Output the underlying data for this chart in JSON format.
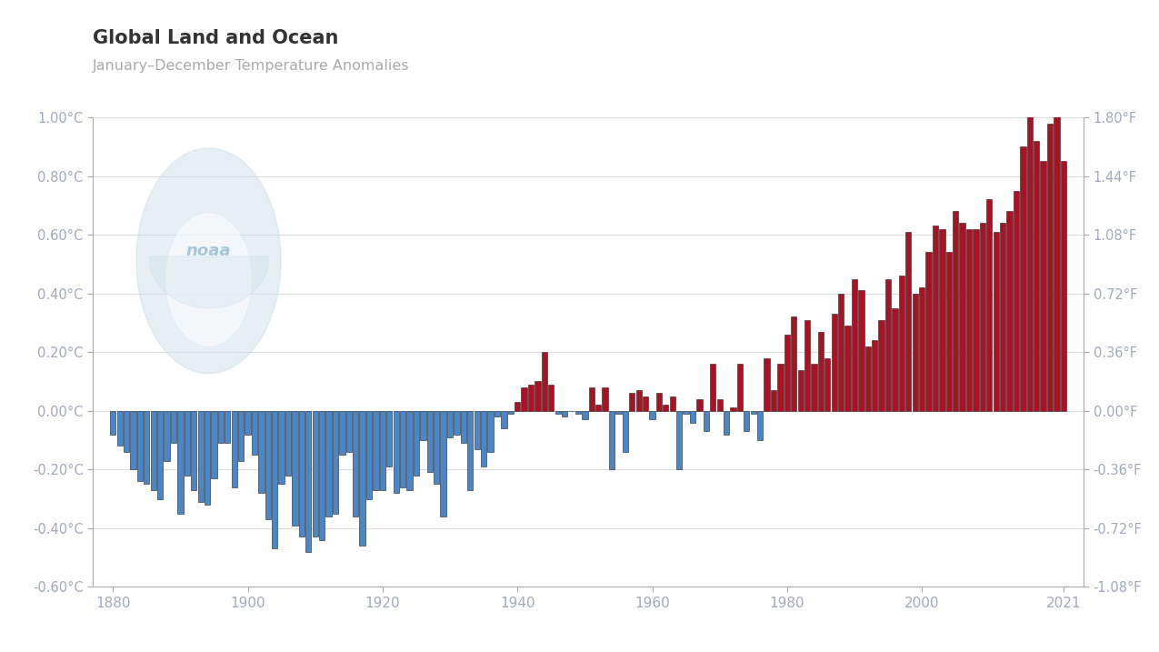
{
  "title": "Global Land and Ocean",
  "subtitle": "January–December Temperature Anomalies",
  "background_color": "#ffffff",
  "bar_color_positive": "#aa1122",
  "bar_color_negative": "#4a86c8",
  "ylim_celsius": [
    -0.6,
    1.0
  ],
  "yticks_celsius": [
    -0.6,
    -0.4,
    -0.2,
    0.0,
    0.2,
    0.4,
    0.6,
    0.8,
    1.0
  ],
  "ytick_labels_celsius": [
    "-0.60°C",
    "-0.40°C",
    "-0.20°C",
    "0.00°C",
    "0.20°C",
    "0.40°C",
    "0.60°C",
    "0.80°C",
    "1.00°C"
  ],
  "ytick_labels_fahrenheit": [
    "-1.08°F",
    "-0.72°F",
    "-0.36°F",
    "0.00°F",
    "0.36°F",
    "0.72°F",
    "1.08°F",
    "1.44°F",
    "1.80°F"
  ],
  "tick_label_color": "#a0aabb",
  "title_color": "#333333",
  "subtitle_color": "#aaaaaa",
  "spine_color": "#aaaaaa",
  "grid_color": "#dddddd",
  "xticks": [
    1880,
    1900,
    1920,
    1940,
    1960,
    1980,
    2000,
    2021
  ],
  "xlim": [
    1877,
    2024
  ],
  "years": [
    1880,
    1881,
    1882,
    1883,
    1884,
    1885,
    1886,
    1887,
    1888,
    1889,
    1890,
    1891,
    1892,
    1893,
    1894,
    1895,
    1896,
    1897,
    1898,
    1899,
    1900,
    1901,
    1902,
    1903,
    1904,
    1905,
    1906,
    1907,
    1908,
    1909,
    1910,
    1911,
    1912,
    1913,
    1914,
    1915,
    1916,
    1917,
    1918,
    1919,
    1920,
    1921,
    1922,
    1923,
    1924,
    1925,
    1926,
    1927,
    1928,
    1929,
    1930,
    1931,
    1932,
    1933,
    1934,
    1935,
    1936,
    1937,
    1938,
    1939,
    1940,
    1941,
    1942,
    1943,
    1944,
    1945,
    1946,
    1947,
    1948,
    1949,
    1950,
    1951,
    1952,
    1953,
    1954,
    1955,
    1956,
    1957,
    1958,
    1959,
    1960,
    1961,
    1962,
    1963,
    1964,
    1965,
    1966,
    1967,
    1968,
    1969,
    1970,
    1971,
    1972,
    1973,
    1974,
    1975,
    1976,
    1977,
    1978,
    1979,
    1980,
    1981,
    1982,
    1983,
    1984,
    1985,
    1986,
    1987,
    1988,
    1989,
    1990,
    1991,
    1992,
    1993,
    1994,
    1995,
    1996,
    1997,
    1998,
    1999,
    2000,
    2001,
    2002,
    2003,
    2004,
    2005,
    2006,
    2007,
    2008,
    2009,
    2010,
    2011,
    2012,
    2013,
    2014,
    2015,
    2016,
    2017,
    2018,
    2019,
    2020,
    2021
  ],
  "anomalies": [
    -0.08,
    -0.12,
    -0.14,
    -0.2,
    -0.24,
    -0.25,
    -0.27,
    -0.3,
    -0.17,
    -0.11,
    -0.35,
    -0.22,
    -0.27,
    -0.31,
    -0.32,
    -0.23,
    -0.11,
    -0.11,
    -0.26,
    -0.17,
    -0.08,
    -0.15,
    -0.28,
    -0.37,
    -0.47,
    -0.25,
    -0.22,
    -0.39,
    -0.43,
    -0.48,
    -0.43,
    -0.44,
    -0.36,
    -0.35,
    -0.15,
    -0.14,
    -0.36,
    -0.46,
    -0.3,
    -0.27,
    -0.27,
    -0.19,
    -0.28,
    -0.26,
    -0.27,
    -0.22,
    -0.1,
    -0.21,
    -0.25,
    -0.36,
    -0.09,
    -0.08,
    -0.11,
    -0.27,
    -0.13,
    -0.19,
    -0.14,
    -0.02,
    -0.06,
    -0.01,
    0.03,
    0.08,
    0.09,
    0.1,
    0.2,
    0.09,
    -0.01,
    -0.02,
    0.0,
    -0.01,
    -0.03,
    0.08,
    0.02,
    0.08,
    -0.2,
    -0.01,
    -0.14,
    0.06,
    0.07,
    0.05,
    -0.03,
    0.06,
    0.02,
    0.05,
    -0.2,
    -0.01,
    -0.04,
    0.04,
    -0.07,
    0.16,
    0.04,
    -0.08,
    0.01,
    0.16,
    -0.07,
    -0.01,
    -0.1,
    0.18,
    0.07,
    0.16,
    0.26,
    0.32,
    0.14,
    0.31,
    0.16,
    0.27,
    0.18,
    0.33,
    0.4,
    0.29,
    0.45,
    0.41,
    0.22,
    0.24,
    0.31,
    0.45,
    0.35,
    0.46,
    0.61,
    0.4,
    0.42,
    0.54,
    0.63,
    0.62,
    0.54,
    0.68,
    0.64,
    0.62,
    0.62,
    0.64,
    0.72,
    0.61,
    0.64,
    0.68,
    0.75,
    0.9,
    1.01,
    0.92,
    0.85,
    0.98,
    1.02,
    0.85
  ],
  "logo_color": "#c8dde8",
  "logo_text_color": "#8ab8d0",
  "noaa_text": "noaa"
}
